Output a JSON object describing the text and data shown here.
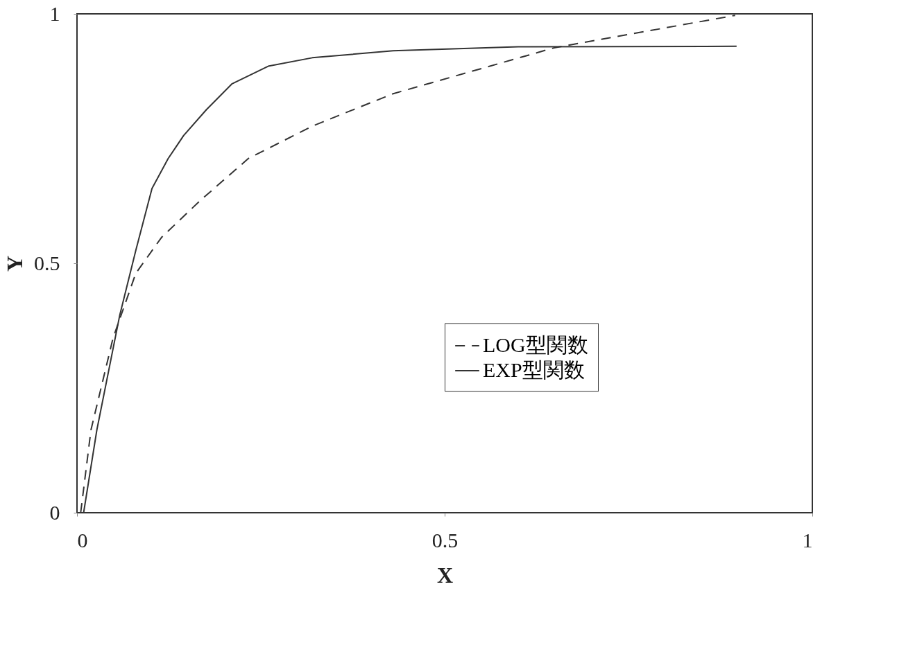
{
  "chart_data": {
    "type": "line",
    "xlabel": "X",
    "ylabel": "Y",
    "xlim": [
      0,
      1
    ],
    "ylim": [
      0,
      1
    ],
    "xticks": [
      0,
      0.5,
      1
    ],
    "yticks": [
      0,
      0.5,
      1
    ],
    "grid": false,
    "legend": "right",
    "marker": "none",
    "series": [
      {
        "name": "LOG型関数",
        "color": "#333333",
        "line_style": "dashed",
        "x": [
          0.005,
          0.019,
          0.049,
          0.08,
          0.115,
          0.167,
          0.233,
          0.32,
          0.43,
          0.649,
          0.895
        ],
        "values": [
          0,
          0.166,
          0.35,
          0.48,
          0.552,
          0.625,
          0.71,
          0.775,
          0.84,
          0.932,
          0.997
        ]
      },
      {
        "name": "EXP型関数",
        "color": "#333333",
        "line_style": "solid",
        "x": [
          0.009,
          0.027,
          0.058,
          0.08,
          0.102,
          0.124,
          0.145,
          0.176,
          0.211,
          0.26,
          0.32,
          0.43,
          0.6,
          0.897
        ],
        "values": [
          0,
          0.166,
          0.395,
          0.526,
          0.65,
          0.71,
          0.756,
          0.808,
          0.86,
          0.895,
          0.912,
          0.926,
          0.934,
          0.935
        ]
      }
    ]
  }
}
